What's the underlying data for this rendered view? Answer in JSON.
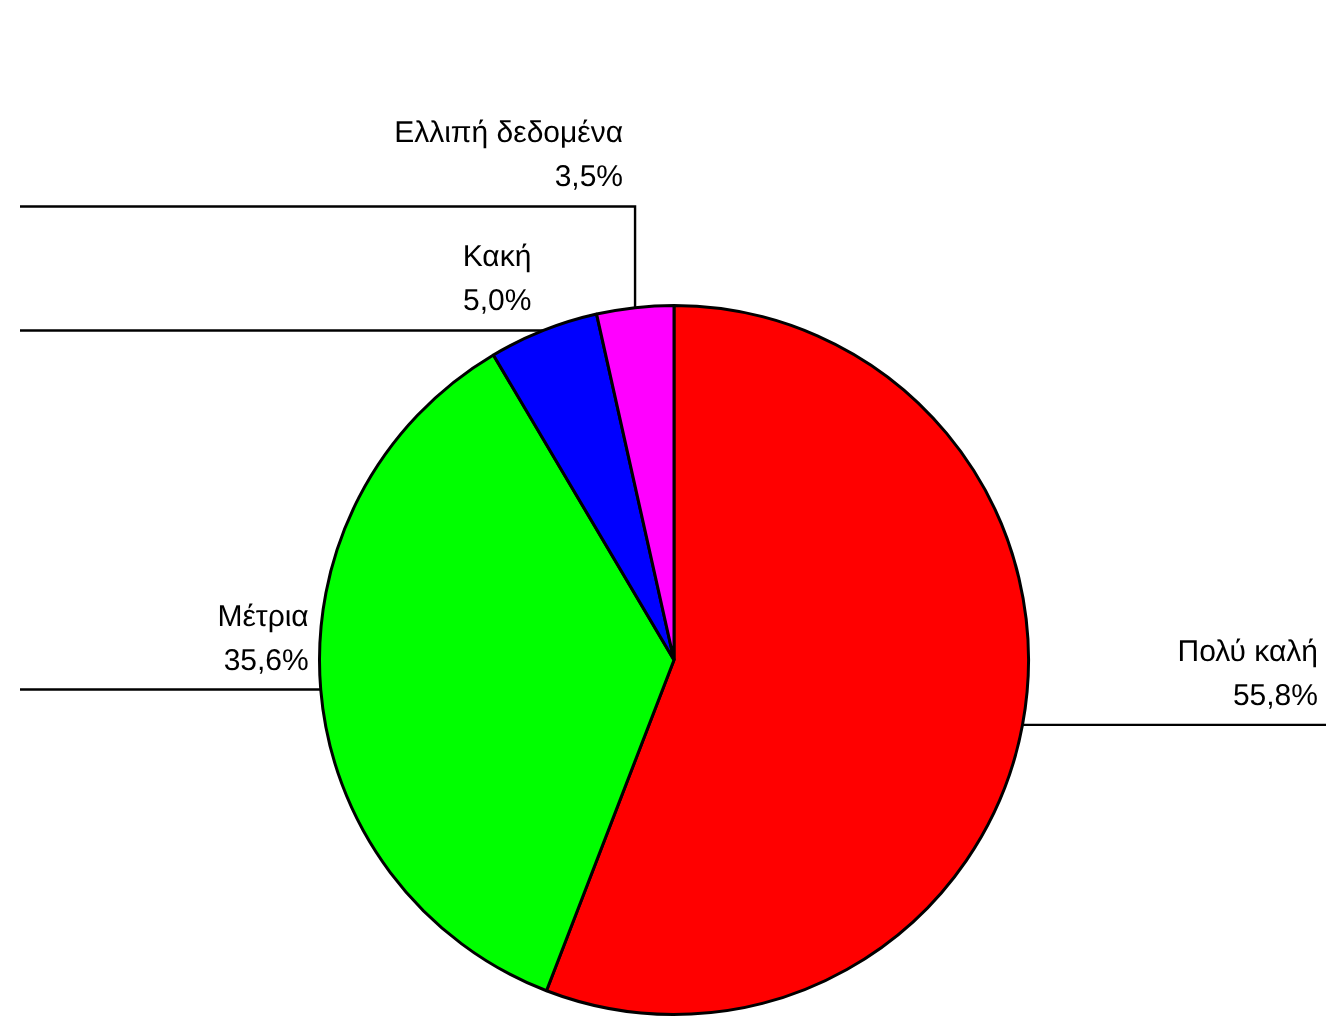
{
  "chart_data": {
    "type": "pie",
    "categories": [
      "Πολύ καλή",
      "Μέτρια",
      "Κακή",
      "Ελλιπή δεδομένα"
    ],
    "values": [
      55.8,
      35.6,
      5.0,
      3.5
    ],
    "colors": [
      "#ff0000",
      "#00ff00",
      "#0000ff",
      "#ff00ff"
    ],
    "value_labels": [
      "55,8%",
      "35,6%",
      "5,0%",
      "3,5%"
    ],
    "legend": false
  }
}
